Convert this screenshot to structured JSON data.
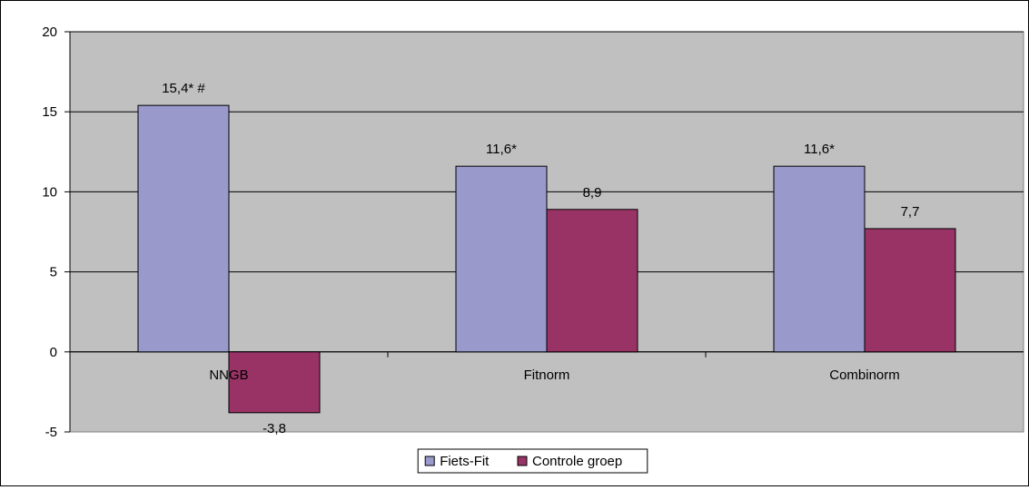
{
  "chart_data": {
    "type": "bar",
    "title": "",
    "xlabel": "",
    "ylabel": "",
    "ylim": [
      -5,
      20
    ],
    "yticks": [
      -5,
      0,
      5,
      10,
      15,
      20
    ],
    "grid": true,
    "legend_position": "bottom",
    "categories": [
      "NNGB",
      "Fitnorm",
      "Combinorm"
    ],
    "series": [
      {
        "name": "Fiets-Fit",
        "color": "#9999cc",
        "values": [
          15.4,
          11.6,
          11.6
        ],
        "labels": [
          "15,4* #",
          "11,6*",
          "11,6*"
        ]
      },
      {
        "name": "Controle groep",
        "color": "#993366",
        "values": [
          -3.8,
          8.9,
          7.7
        ],
        "labels": [
          "-3,8",
          "8,9",
          "7,7"
        ]
      }
    ],
    "plot_background": "#c0c0c0"
  }
}
